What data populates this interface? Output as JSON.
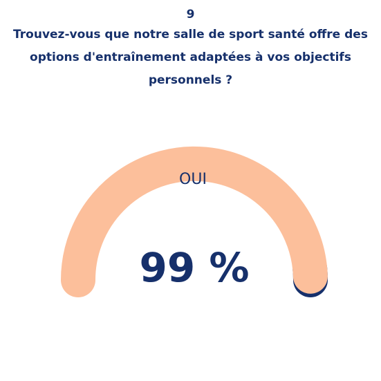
{
  "question": {
    "number": "9",
    "text": "Trouvez-vous que notre salle de sport santé offre des options d'entraînement adaptées à vos objectifs personnels ?"
  },
  "gauge": {
    "label": "OUI",
    "value_text": "99 %",
    "fraction": 0.99,
    "colors": {
      "filled": "#fcbf9b",
      "remaining": "#16306b",
      "text": "#16306b"
    }
  }
}
